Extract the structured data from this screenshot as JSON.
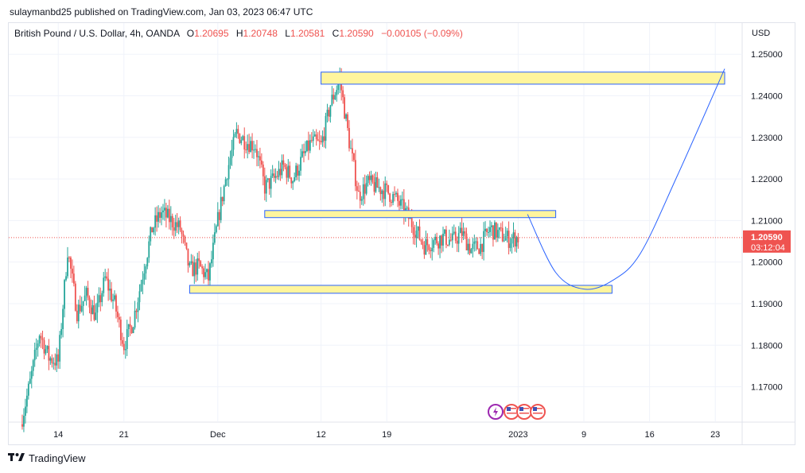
{
  "publisher": {
    "text": "sulaymanbd25 published on TradingView.com, Jan 03, 2023 06:47 UTC"
  },
  "legend": {
    "symbol": "British Pound / U.S. Dollar, 4h, OANDA",
    "o_label": "O",
    "o_value": "1.20695",
    "h_label": "H",
    "h_value": "1.20748",
    "l_label": "L",
    "l_value": "1.20581",
    "c_label": "C",
    "c_value": "1.20590",
    "change": "−0.00105 (−0.09%)"
  },
  "colors": {
    "up": "#26a69a",
    "down": "#ef5350",
    "zone_fill": "#fff59d",
    "zone_stroke": "#2962ff",
    "projection": "#2962ff",
    "price_label_bg": "#ef5350"
  },
  "footer": {
    "logo_icon": "tradingview-logo-icon",
    "text": "TradingView"
  },
  "chart_data": {
    "type": "candlestick",
    "currency": "USD",
    "ylim": [
      1.1615,
      1.2575
    ],
    "y_ticks": [
      "1.25000",
      "1.24000",
      "1.23000",
      "1.22000",
      "1.21000",
      "1.20000",
      "1.19000",
      "1.18000",
      "1.17000"
    ],
    "x_ticks": [
      "14",
      "21",
      "Dec",
      "12",
      "19",
      "2023",
      "9",
      "16",
      "23"
    ],
    "last_price": "1.20590",
    "countdown": "03:12:04",
    "path": [
      [
        "2022-11-10",
        1.161
      ],
      [
        "2022-11-11",
        1.171
      ],
      [
        "2022-11-12",
        1.183
      ],
      [
        "2022-11-13",
        1.177
      ],
      [
        "2022-11-14",
        1.176
      ],
      [
        "2022-11-15",
        1.203
      ],
      [
        "2022-11-16",
        1.188
      ],
      [
        "2022-11-17",
        1.192
      ],
      [
        "2022-11-18",
        1.187
      ],
      [
        "2022-11-19",
        1.196
      ],
      [
        "2022-11-20",
        1.19
      ],
      [
        "2022-11-21",
        1.18
      ],
      [
        "2022-11-22",
        1.186
      ],
      [
        "2022-11-23",
        1.197
      ],
      [
        "2022-11-24",
        1.208
      ],
      [
        "2022-11-25",
        1.212
      ],
      [
        "2022-11-26",
        1.21
      ],
      [
        "2022-11-27",
        1.208
      ],
      [
        "2022-11-28",
        1.198
      ],
      [
        "2022-11-29",
        1.199
      ],
      [
        "2022-11-30",
        1.196
      ],
      [
        "2022-12-01",
        1.21
      ],
      [
        "2022-12-02",
        1.222
      ],
      [
        "2022-12-03",
        1.231
      ],
      [
        "2022-12-04",
        1.229
      ],
      [
        "2022-12-05",
        1.228
      ],
      [
        "2022-12-06",
        1.218
      ],
      [
        "2022-12-07",
        1.22
      ],
      [
        "2022-12-08",
        1.223
      ],
      [
        "2022-12-09",
        1.22
      ],
      [
        "2022-12-10",
        1.225
      ],
      [
        "2022-12-11",
        1.229
      ],
      [
        "2022-12-12",
        1.228
      ],
      [
        "2022-12-13",
        1.238
      ],
      [
        "2022-12-14",
        1.244
      ],
      [
        "2022-12-15",
        1.229
      ],
      [
        "2022-12-16",
        1.216
      ],
      [
        "2022-12-17",
        1.219
      ],
      [
        "2022-12-18",
        1.218
      ],
      [
        "2022-12-19",
        1.217
      ],
      [
        "2022-12-20",
        1.215
      ],
      [
        "2022-12-21",
        1.212
      ],
      [
        "2022-12-22",
        1.208
      ],
      [
        "2022-12-23",
        1.204
      ],
      [
        "2022-12-24",
        1.205
      ],
      [
        "2022-12-25",
        1.206
      ],
      [
        "2022-12-26",
        1.205
      ],
      [
        "2022-12-27",
        1.207
      ],
      [
        "2022-12-28",
        1.203
      ],
      [
        "2022-12-29",
        1.204
      ],
      [
        "2022-12-30",
        1.208
      ],
      [
        "2023-01-01",
        1.2055
      ],
      [
        "2023-01-02",
        1.2059
      ]
    ],
    "zones": [
      {
        "from": "2022-12-12",
        "to": "2023-01-24",
        "low": 1.2428,
        "high": 1.2457
      },
      {
        "from": "2022-12-06",
        "to": "2023-01-06",
        "low": 1.2107,
        "high": 1.2124
      },
      {
        "from": "2022-11-28",
        "to": "2023-01-12",
        "low": 1.1925,
        "high": 1.1944
      }
    ],
    "projection": [
      [
        "2023-01-03",
        1.2115
      ],
      [
        "2023-01-06",
        1.1975
      ],
      [
        "2023-01-09",
        1.1935
      ],
      [
        "2023-01-12",
        1.1955
      ],
      [
        "2023-01-15",
        1.202
      ],
      [
        "2023-01-19",
        1.221
      ],
      [
        "2023-01-24",
        1.2465
      ]
    ],
    "events": [
      "lightning-event-icon",
      "us-flag-event-icon",
      "us-flag-event-icon",
      "us-flag-event-icon"
    ]
  }
}
